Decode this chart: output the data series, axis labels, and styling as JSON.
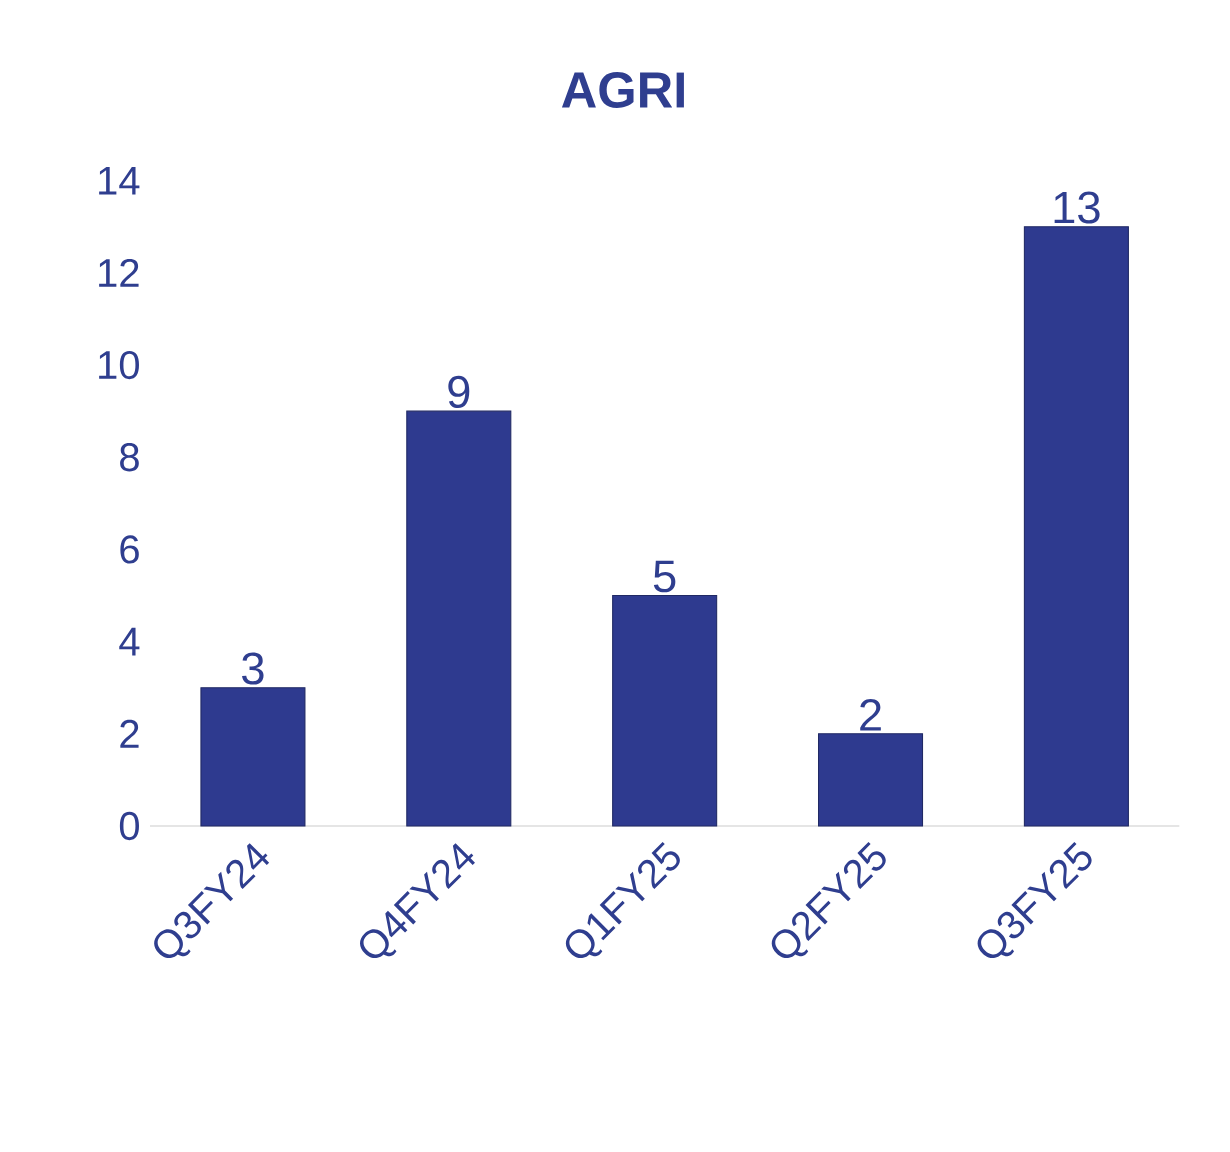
{
  "chart_data": {
    "type": "bar",
    "title": "AGRI",
    "categories": [
      "Q3FY24",
      "Q4FY24",
      "Q1FY25",
      "Q2FY25",
      "Q3FY25"
    ],
    "values": [
      3,
      9,
      5,
      2,
      13
    ],
    "color": "#2e3a8f",
    "ylim": [
      0,
      14
    ],
    "yticks": [
      0,
      2,
      4,
      6,
      8,
      10,
      12,
      14
    ],
    "data_labels": true
  }
}
